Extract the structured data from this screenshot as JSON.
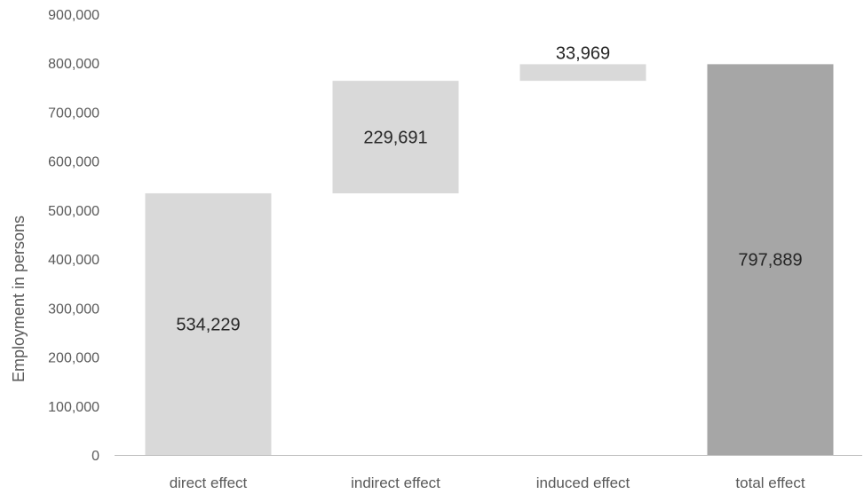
{
  "chart_data": {
    "type": "bar",
    "subtype": "waterfall",
    "title": "",
    "xlabel": "",
    "ylabel": "Employment in persons",
    "ylim": [
      0,
      900000
    ],
    "y_ticks": [
      0,
      100000,
      200000,
      300000,
      400000,
      500000,
      600000,
      700000,
      800000,
      900000
    ],
    "y_tick_labels": [
      "0",
      "100,000",
      "200,000",
      "300,000",
      "400,000",
      "500,000",
      "600,000",
      "700,000",
      "800,000",
      "900,000"
    ],
    "grid": false,
    "legend": "none",
    "categories": [
      "direct effect",
      "indirect effect",
      "induced effect",
      "total effect"
    ],
    "bars": [
      {
        "category": "direct effect",
        "base": 0,
        "value": 534229,
        "label": "534,229",
        "color": "#d9d9d9",
        "label_position": "center"
      },
      {
        "category": "indirect effect",
        "base": 534229,
        "value": 229691,
        "label": "229,691",
        "color": "#d9d9d9",
        "label_position": "center"
      },
      {
        "category": "induced effect",
        "base": 763920,
        "value": 33969,
        "label": "33,969",
        "color": "#d9d9d9",
        "label_position": "above"
      },
      {
        "category": "total effect",
        "base": 0,
        "value": 797889,
        "label": "797,889",
        "color": "#a6a6a6",
        "label_position": "center"
      }
    ],
    "axis_color": "#bfbfbf"
  }
}
